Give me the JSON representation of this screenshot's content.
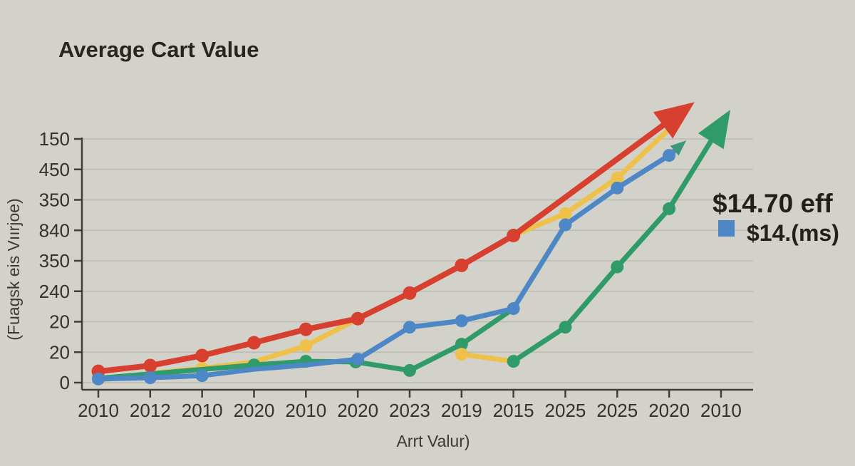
{
  "colors": {
    "background": "#d3d2ca",
    "grid": "#bcbbb3",
    "axis": "#403f39",
    "red": "#d7402f",
    "yellow": "#eec14b",
    "blue": "#4d87c5",
    "green": "#2f9b69",
    "teal_arrow": "#3f9678",
    "text": "#2a2922"
  },
  "legend": {
    "primary": "$14.70 eff",
    "secondary": "$14.(ms)",
    "swatch_color": "#4d87c5"
  },
  "chart_data": {
    "type": "line",
    "title": "Average Cart Value",
    "xlabel": "Arrt Valur)",
    "ylabel": "(Fuagsk eis Vıırjoe)",
    "x_tick_labels": [
      "2010",
      "2012",
      "2010",
      "2020",
      "2010",
      "2020",
      "2023",
      "2019",
      "2015",
      "2025",
      "2025",
      "2020",
      "2010"
    ],
    "y_tick_labels_bottom_to_top": [
      "0",
      "20",
      "20",
      "240",
      "350",
      "840",
      "350",
      "450",
      "150"
    ],
    "grid": true,
    "axis_note": "x = tick index 0-12 (year labels above); y = axis tick units, 0 = bottom tick '0', 8 = top tick '150'; arrows extend beyond top of axis",
    "series": [
      {
        "name": "yellow",
        "color": "#eec14b",
        "points": [
          [
            0,
            0.07
          ],
          [
            1,
            0.3
          ],
          [
            2,
            0.47
          ],
          [
            3,
            0.68
          ],
          [
            4,
            1.21
          ],
          [
            5,
            2.1
          ],
          [
            6,
            2.94
          ],
          [
            7,
            3.85
          ],
          [
            8,
            4.83
          ],
          [
            9,
            5.55
          ],
          [
            10,
            6.72
          ],
          [
            11.1,
            8.48
          ]
        ],
        "dots": [
          2,
          4,
          9,
          10
        ]
      },
      {
        "name": "green",
        "color": "#2f9b69",
        "points": [
          [
            0,
            0.14
          ],
          [
            3,
            0.58
          ],
          [
            4,
            0.7
          ],
          [
            4.96,
            0.68
          ],
          [
            6,
            0.4
          ],
          [
            7,
            1.26
          ],
          [
            8,
            2.43
          ]
        ],
        "dots": [
          0,
          1,
          2,
          3,
          4,
          5
        ]
      },
      {
        "name": "yellow-artifact",
        "color": "#eec14b",
        "points": [
          [
            7,
            0.93
          ],
          [
            8,
            0.7
          ]
        ],
        "dots": [
          0
        ]
      },
      {
        "name": "green-2",
        "color": "#2f9b69",
        "points": [
          [
            8,
            0.7
          ],
          [
            9,
            1.82
          ],
          [
            10,
            3.8
          ],
          [
            11,
            5.71
          ]
        ],
        "dots": "all",
        "arrow": {
          "tip": [
            12.18,
            8.96
          ],
          "head_len": 52,
          "head_halfwidth": 21
        }
      },
      {
        "name": "red",
        "color": "#d7402f",
        "points": [
          [
            0,
            0.37
          ],
          [
            1,
            0.56
          ],
          [
            2,
            0.89
          ],
          [
            3,
            1.31
          ],
          [
            4,
            1.75
          ],
          [
            5,
            2.1
          ],
          [
            6,
            2.94
          ],
          [
            7,
            3.85
          ],
          [
            8,
            4.83
          ]
        ],
        "dots": "all",
        "arrow": {
          "tip": [
            11.49,
            9.21
          ],
          "head_len": 55,
          "head_halfwidth": 23
        }
      },
      {
        "name": "blue",
        "color": "#4d87c5",
        "points": [
          [
            0,
            0.12
          ],
          [
            1,
            0.16
          ],
          [
            2,
            0.23
          ],
          [
            3,
            0.44
          ],
          [
            4,
            0.58
          ],
          [
            5,
            0.77
          ],
          [
            6,
            1.82
          ],
          [
            7,
            2.03
          ],
          [
            8,
            2.43
          ],
          [
            9,
            5.18
          ],
          [
            10,
            6.39
          ],
          [
            11,
            7.46
          ]
        ],
        "dots": [
          0,
          1,
          2,
          5,
          6,
          7,
          8,
          9,
          10,
          11
        ],
        "arrow": {
          "tip": [
            11.33,
            7.95
          ],
          "head_len": 22,
          "head_halfwidth": 9,
          "head_color": "#3f9678"
        }
      }
    ]
  }
}
